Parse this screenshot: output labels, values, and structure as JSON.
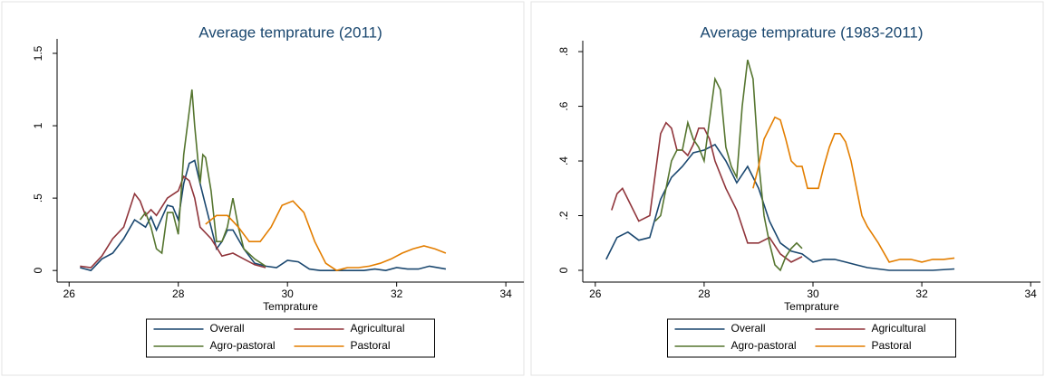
{
  "chart_data": [
    {
      "type": "line",
      "title": "Average temprature (2011)",
      "x_label": "Temprature",
      "xlim": [
        25.78,
        34.33
      ],
      "xticks": [
        26,
        28,
        30,
        32,
        34
      ],
      "ylim": [
        -0.08,
        1.6
      ],
      "yticks": [
        0,
        {
          "value": 0.5,
          "label": ".5"
        },
        1,
        1.5
      ],
      "legend": "bottom",
      "series": [
        {
          "name": "Overall",
          "color": "#1a476f",
          "x": [
            26.2,
            26.4,
            26.6,
            26.8,
            27.0,
            27.2,
            27.4,
            27.5,
            27.6,
            27.8,
            27.9,
            28.0,
            28.1,
            28.2,
            28.3,
            28.4,
            28.5,
            28.6,
            28.7,
            28.8,
            28.9,
            29.0,
            29.2,
            29.4,
            29.6,
            29.8,
            30.0,
            30.2,
            30.4,
            30.6,
            31.0,
            31.4,
            31.6,
            31.8,
            32.0,
            32.2,
            32.4,
            32.6,
            32.9
          ],
          "values": [
            0.02,
            0.0,
            0.08,
            0.12,
            0.22,
            0.35,
            0.3,
            0.37,
            0.28,
            0.45,
            0.44,
            0.35,
            0.6,
            0.74,
            0.76,
            0.6,
            0.45,
            0.3,
            0.15,
            0.2,
            0.28,
            0.28,
            0.15,
            0.05,
            0.03,
            0.02,
            0.07,
            0.06,
            0.01,
            0.0,
            0.0,
            0.0,
            0.01,
            0.0,
            0.02,
            0.01,
            0.01,
            0.03,
            0.01
          ]
        },
        {
          "name": "Agricultural",
          "color": "#90353b",
          "x": [
            26.2,
            26.4,
            26.6,
            26.8,
            27.0,
            27.2,
            27.3,
            27.4,
            27.5,
            27.6,
            27.8,
            28.0,
            28.1,
            28.2,
            28.3,
            28.4,
            28.6,
            28.8,
            29.0,
            29.2,
            29.4,
            29.6
          ],
          "values": [
            0.03,
            0.02,
            0.1,
            0.22,
            0.3,
            0.53,
            0.48,
            0.38,
            0.42,
            0.38,
            0.5,
            0.55,
            0.65,
            0.62,
            0.5,
            0.3,
            0.22,
            0.1,
            0.12,
            0.08,
            0.04,
            0.02
          ]
        },
        {
          "name": "Agro-pastoral",
          "color": "#55752f",
          "x": [
            27.3,
            27.4,
            27.5,
            27.6,
            27.7,
            27.8,
            27.9,
            28.0,
            28.1,
            28.2,
            28.25,
            28.3,
            28.4,
            28.45,
            28.5,
            28.6,
            28.7,
            28.8,
            28.9,
            29.0,
            29.1,
            29.2,
            29.4,
            29.6
          ],
          "values": [
            0.35,
            0.4,
            0.3,
            0.15,
            0.12,
            0.4,
            0.4,
            0.25,
            0.8,
            1.1,
            1.25,
            1.0,
            0.6,
            0.8,
            0.78,
            0.55,
            0.2,
            0.2,
            0.3,
            0.5,
            0.3,
            0.15,
            0.08,
            0.03
          ]
        },
        {
          "name": "Pastoral",
          "color": "#e37e00",
          "x": [
            28.5,
            28.7,
            28.9,
            29.1,
            29.3,
            29.5,
            29.7,
            29.9,
            30.1,
            30.3,
            30.5,
            30.7,
            30.9,
            31.1,
            31.3,
            31.5,
            31.7,
            31.9,
            32.1,
            32.3,
            32.5,
            32.7,
            32.9
          ],
          "values": [
            0.32,
            0.38,
            0.38,
            0.3,
            0.2,
            0.2,
            0.3,
            0.45,
            0.48,
            0.4,
            0.2,
            0.05,
            0.0,
            0.02,
            0.02,
            0.03,
            0.05,
            0.08,
            0.12,
            0.15,
            0.17,
            0.15,
            0.12
          ]
        }
      ]
    },
    {
      "type": "line",
      "title": "Average temprature (1983-2011)",
      "x_label": "Temprature",
      "xlim": [
        25.77,
        34.18
      ],
      "xticks": [
        26,
        28,
        30,
        32,
        34
      ],
      "ylim": [
        -0.043,
        0.84
      ],
      "yticks": [
        0,
        {
          "value": 0.2,
          "label": ".2"
        },
        {
          "value": 0.4,
          "label": ".4"
        },
        {
          "value": 0.6,
          "label": ".6"
        },
        {
          "value": 0.8,
          "label": ".8"
        }
      ],
      "legend": "bottom",
      "series": [
        {
          "name": "Overall",
          "color": "#1a476f",
          "x": [
            26.2,
            26.4,
            26.6,
            26.8,
            27.0,
            27.2,
            27.4,
            27.6,
            27.8,
            28.0,
            28.2,
            28.4,
            28.6,
            28.8,
            29.0,
            29.2,
            29.4,
            29.6,
            29.8,
            30.0,
            30.2,
            30.4,
            30.6,
            30.8,
            31.0,
            31.4,
            31.8,
            32.2,
            32.6
          ],
          "values": [
            0.04,
            0.12,
            0.14,
            0.11,
            0.12,
            0.26,
            0.34,
            0.38,
            0.43,
            0.44,
            0.46,
            0.4,
            0.32,
            0.38,
            0.3,
            0.18,
            0.1,
            0.07,
            0.06,
            0.03,
            0.04,
            0.04,
            0.03,
            0.02,
            0.01,
            0.0,
            0.0,
            0.0,
            0.005
          ]
        },
        {
          "name": "Agricultural",
          "color": "#90353b",
          "x": [
            26.3,
            26.4,
            26.5,
            26.6,
            26.8,
            27.0,
            27.2,
            27.3,
            27.4,
            27.5,
            27.6,
            27.7,
            27.8,
            27.9,
            28.0,
            28.1,
            28.2,
            28.4,
            28.6,
            28.8,
            29.0,
            29.2,
            29.4,
            29.6,
            29.8
          ],
          "values": [
            0.22,
            0.28,
            0.3,
            0.26,
            0.18,
            0.2,
            0.5,
            0.54,
            0.52,
            0.44,
            0.44,
            0.42,
            0.46,
            0.52,
            0.52,
            0.48,
            0.4,
            0.3,
            0.22,
            0.1,
            0.1,
            0.12,
            0.06,
            0.03,
            0.05
          ]
        },
        {
          "name": "Agro-pastoral",
          "color": "#55752f",
          "x": [
            27.1,
            27.2,
            27.3,
            27.4,
            27.5,
            27.6,
            27.7,
            27.8,
            27.9,
            28.0,
            28.1,
            28.2,
            28.3,
            28.4,
            28.5,
            28.6,
            28.7,
            28.8,
            28.9,
            29.0,
            29.1,
            29.2,
            29.3,
            29.4,
            29.5,
            29.6,
            29.7,
            29.8
          ],
          "values": [
            0.18,
            0.2,
            0.3,
            0.4,
            0.44,
            0.44,
            0.54,
            0.48,
            0.45,
            0.4,
            0.55,
            0.7,
            0.66,
            0.45,
            0.38,
            0.34,
            0.6,
            0.77,
            0.7,
            0.4,
            0.2,
            0.1,
            0.02,
            0.0,
            0.05,
            0.08,
            0.1,
            0.08
          ]
        },
        {
          "name": "Pastoral",
          "color": "#e37e00",
          "x": [
            28.9,
            29.0,
            29.1,
            29.3,
            29.4,
            29.5,
            29.6,
            29.7,
            29.8,
            29.9,
            30.0,
            30.1,
            30.2,
            30.3,
            30.4,
            30.5,
            30.6,
            30.7,
            30.8,
            30.9,
            31.0,
            31.2,
            31.4,
            31.6,
            31.8,
            32.0,
            32.2,
            32.4,
            32.6
          ],
          "values": [
            0.3,
            0.38,
            0.48,
            0.56,
            0.55,
            0.48,
            0.4,
            0.38,
            0.38,
            0.3,
            0.3,
            0.3,
            0.38,
            0.45,
            0.5,
            0.5,
            0.47,
            0.4,
            0.3,
            0.2,
            0.16,
            0.1,
            0.03,
            0.04,
            0.04,
            0.03,
            0.04,
            0.04,
            0.045
          ]
        }
      ]
    }
  ]
}
